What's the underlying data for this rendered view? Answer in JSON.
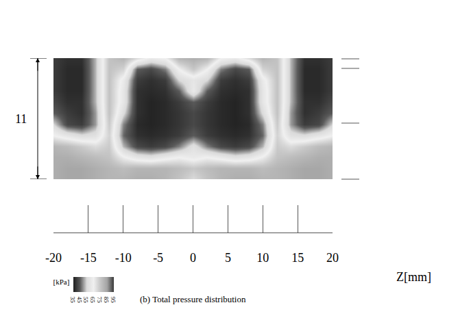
{
  "chart_data": {
    "type": "heatmap",
    "title": "(b) Total pressure distribution",
    "x_label": "Z[mm]",
    "dimension_label": "11",
    "x": [
      -20,
      -18,
      -16,
      -14,
      -12,
      -10,
      -8,
      -6,
      -4,
      -2,
      0,
      2,
      4,
      6,
      8,
      10,
      12,
      14,
      16,
      18,
      20
    ],
    "y": [
      0,
      1,
      2,
      3,
      4,
      5,
      6,
      7,
      8,
      9,
      10,
      11
    ],
    "z": [
      [
        82,
        84,
        84,
        82,
        80,
        80,
        82,
        82,
        80,
        76,
        70,
        76,
        80,
        82,
        82,
        80,
        80,
        82,
        84,
        84,
        82
      ],
      [
        82,
        84,
        84,
        82,
        80,
        78,
        80,
        80,
        80,
        78,
        75,
        78,
        80,
        80,
        80,
        78,
        80,
        82,
        84,
        84,
        82
      ],
      [
        82,
        82,
        80,
        78,
        76,
        66,
        60,
        58,
        62,
        65,
        62,
        65,
        62,
        58,
        60,
        66,
        76,
        78,
        80,
        82,
        82
      ],
      [
        80,
        78,
        74,
        70,
        74,
        52,
        42,
        40,
        42,
        48,
        58,
        48,
        42,
        40,
        42,
        52,
        74,
        70,
        74,
        78,
        80
      ],
      [
        65,
        60,
        56,
        58,
        72,
        46,
        38,
        37,
        38,
        40,
        45,
        40,
        38,
        37,
        38,
        46,
        72,
        58,
        56,
        60,
        65
      ],
      [
        55,
        42,
        40,
        50,
        74,
        48,
        37,
        36,
        37,
        39,
        42,
        39,
        37,
        36,
        37,
        48,
        74,
        50,
        40,
        42,
        55
      ],
      [
        45,
        40,
        38,
        50,
        76,
        56,
        38,
        36,
        37,
        39,
        42,
        39,
        37,
        36,
        38,
        56,
        76,
        50,
        38,
        40,
        45
      ],
      [
        42,
        38,
        38,
        52,
        76,
        60,
        38,
        36,
        37,
        40,
        45,
        40,
        37,
        36,
        38,
        60,
        76,
        52,
        38,
        38,
        42
      ],
      [
        40,
        37,
        37,
        52,
        76,
        60,
        38,
        37,
        38,
        45,
        62,
        45,
        38,
        37,
        38,
        60,
        76,
        52,
        37,
        37,
        40
      ],
      [
        40,
        37,
        37,
        52,
        76,
        62,
        40,
        38,
        40,
        55,
        60,
        55,
        40,
        38,
        40,
        62,
        76,
        52,
        37,
        37,
        40
      ],
      [
        40,
        37,
        37,
        52,
        76,
        72,
        45,
        42,
        48,
        65,
        75,
        65,
        48,
        42,
        45,
        72,
        76,
        52,
        37,
        37,
        40
      ],
      [
        40,
        38,
        38,
        52,
        76,
        80,
        70,
        62,
        65,
        80,
        82,
        80,
        65,
        62,
        70,
        80,
        76,
        52,
        38,
        38,
        40
      ]
    ],
    "xlim": [
      -20,
      20
    ],
    "xticks": [
      -20,
      -15,
      -10,
      -5,
      0,
      5,
      10,
      15,
      20
    ],
    "ylim": [
      0,
      11
    ],
    "tick_labels": "x",
    "colorbar": {
      "range": [
        35,
        95
      ],
      "ticks": [
        35,
        45,
        55,
        65,
        75,
        85,
        95
      ],
      "title": "[kPa]"
    }
  }
}
